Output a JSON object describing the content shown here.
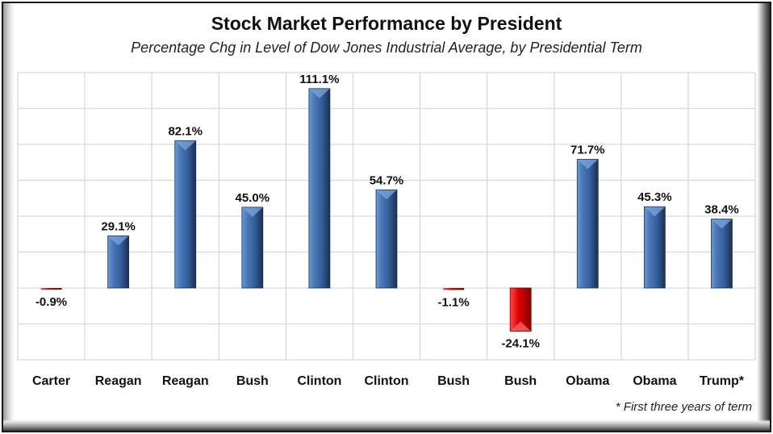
{
  "chart_data": {
    "type": "bar",
    "title": "Stock Market Performance by President",
    "subtitle": "Percentage Chg in Level of Dow Jones Industrial Average, by Presidential Term",
    "xlabel": "",
    "ylabel": "",
    "ylim": [
      -40,
      120
    ],
    "ytick_step": 20,
    "grid": true,
    "categories": [
      "Carter",
      "Reagan",
      "Reagan",
      "Bush",
      "Clinton",
      "Clinton",
      "Bush",
      "Bush",
      "Obama",
      "Obama",
      "Trump*"
    ],
    "values": [
      -0.9,
      29.1,
      82.1,
      45.0,
      111.1,
      54.7,
      -1.1,
      -24.1,
      71.7,
      45.3,
      38.4
    ],
    "data_labels": [
      "-0.9%",
      "29.1%",
      "82.1%",
      "45.0%",
      "111.1%",
      "54.7%",
      "-1.1%",
      "-24.1%",
      "71.7%",
      "45.3%",
      "38.4%"
    ],
    "footnote": "* First three years of term",
    "colors": {
      "positive": "#3a6aa8",
      "negative": "#e00000",
      "grid": "#d9d9d9"
    }
  }
}
